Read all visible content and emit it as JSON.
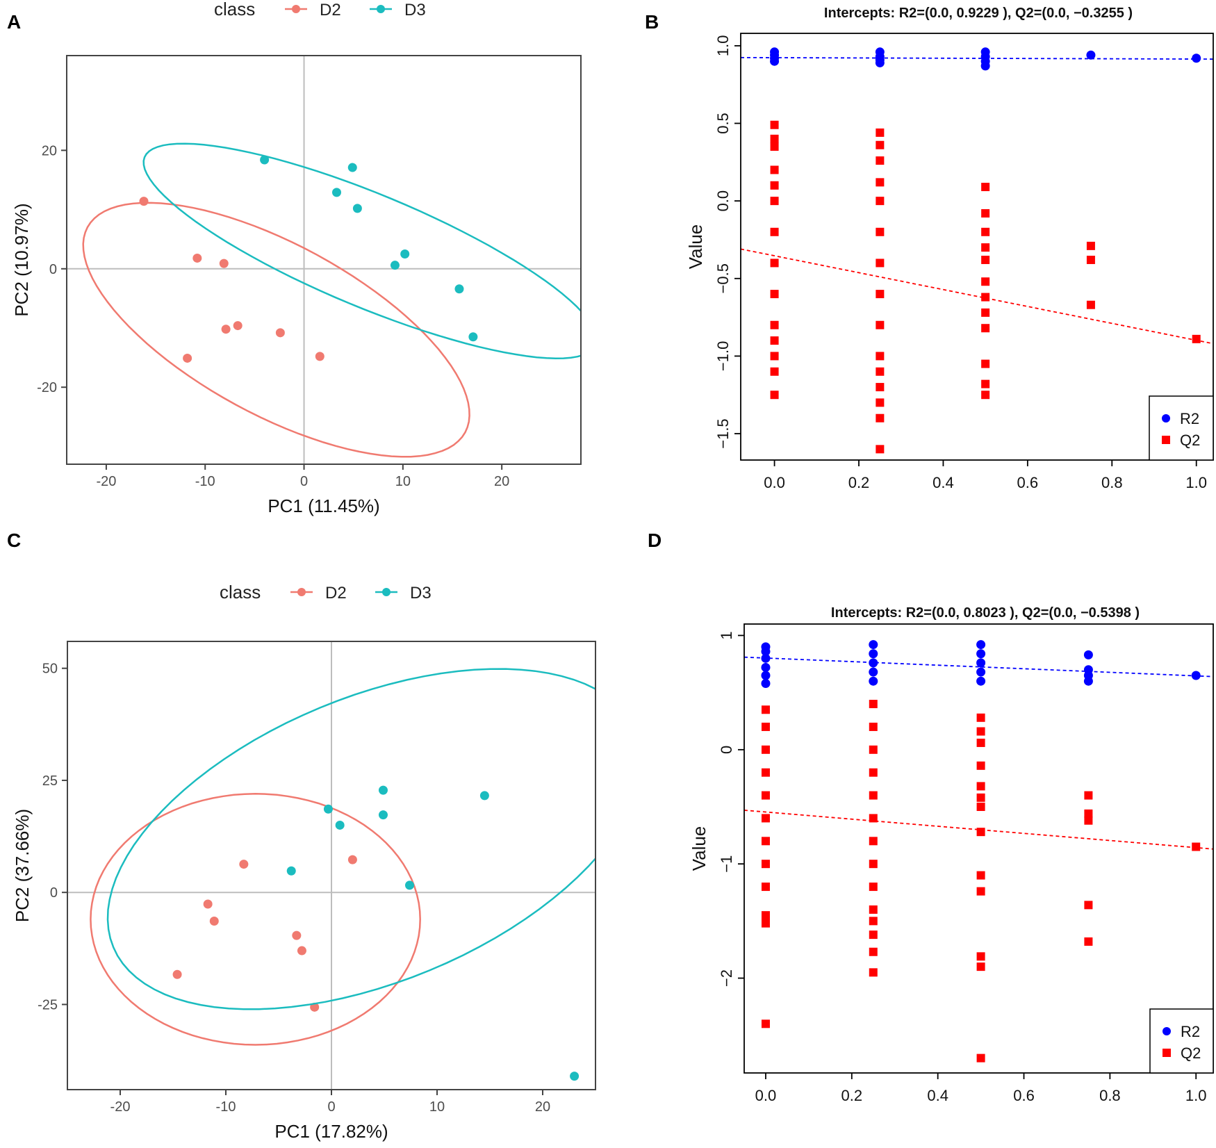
{
  "panel_letters": [
    "A",
    "B",
    "C",
    "D"
  ],
  "colors": {
    "d2": "#f07a70",
    "d3": "#1bbcbf",
    "r2": "#0000ff",
    "q2": "#ff0000",
    "grid": "#bdbdbd",
    "frame": "#444444"
  },
  "chart_data": [
    {
      "panel": "A",
      "type": "scatter",
      "legend_title": "class",
      "legend": [
        "D2",
        "D3"
      ],
      "xlabel": "PC1 (11.45%)",
      "ylabel": "PC2 (10.97%)",
      "xlim": [
        -24,
        28
      ],
      "ylim": [
        -33,
        36
      ],
      "xticks": [
        -20,
        -10,
        0,
        10,
        20
      ],
      "xtick_labels": [
        "-20",
        "-10",
        "0",
        "10",
        "20"
      ],
      "yticks": [
        -20,
        0,
        20
      ],
      "ytick_labels": [
        "-20",
        "0",
        "20"
      ],
      "series": [
        {
          "name": "D2",
          "points": [
            [
              -16.2,
              11.4
            ],
            [
              -10.8,
              1.8
            ],
            [
              -8.1,
              0.9
            ],
            [
              -7.9,
              -10.2
            ],
            [
              -6.7,
              -9.6
            ],
            [
              -2.4,
              -10.8
            ],
            [
              -11.8,
              -15.1
            ],
            [
              1.6,
              -14.8
            ]
          ],
          "ellipse": {
            "cx": -2.8,
            "cy": -10.3,
            "rx": 26.5,
            "ry": 11.8,
            "angle": -49
          }
        },
        {
          "name": "D3",
          "points": [
            [
              -4.0,
              18.4
            ],
            [
              4.9,
              17.1
            ],
            [
              3.3,
              12.9
            ],
            [
              5.4,
              10.2
            ],
            [
              10.2,
              2.5
            ],
            [
              9.2,
              0.6
            ],
            [
              15.7,
              -3.4
            ],
            [
              17.1,
              -11.5
            ]
          ],
          "ellipse": {
            "cx": 6.7,
            "cy": 3.0,
            "rx": 28.0,
            "ry": 8.4,
            "angle": -37
          }
        }
      ]
    },
    {
      "panel": "B",
      "type": "scatter",
      "title": "Intercepts: R2=(0.0, 0.9229 ), Q2=(0.0, −0.3255 )",
      "ylabel": "Value",
      "xlim": [
        -0.08,
        1.04
      ],
      "ylim": [
        -1.67,
        1.08
      ],
      "xticks": [
        0.0,
        0.2,
        0.4,
        0.6,
        0.8,
        1.0
      ],
      "xtick_labels": [
        "0.0",
        "0.2",
        "0.4",
        "0.6",
        "0.8",
        "1.0"
      ],
      "yticks": [
        1.0,
        0.5,
        0.0,
        -0.5,
        -1.0,
        -1.5
      ],
      "ytick_labels": [
        "1.0",
        "0.5",
        "0.0",
        "−0.5",
        "−1.0",
        "−1.5"
      ],
      "legend": [
        "R2",
        "Q2"
      ],
      "r2": [
        [
          0,
          0.9
        ],
        [
          0,
          0.92
        ],
        [
          0,
          0.94
        ],
        [
          0,
          0.96
        ],
        [
          0.25,
          0.89
        ],
        [
          0.25,
          0.91
        ],
        [
          0.25,
          0.93
        ],
        [
          0.25,
          0.96
        ],
        [
          0.5,
          0.87
        ],
        [
          0.5,
          0.9
        ],
        [
          0.5,
          0.93
        ],
        [
          0.5,
          0.96
        ],
        [
          0.75,
          0.94
        ],
        [
          1.0,
          0.92
        ]
      ],
      "q2": [
        [
          0,
          0.49
        ],
        [
          0,
          0.4
        ],
        [
          0,
          0.35
        ],
        [
          0,
          0.2
        ],
        [
          0,
          0.1
        ],
        [
          0,
          0.0
        ],
        [
          0,
          -0.2
        ],
        [
          0,
          -0.4
        ],
        [
          0,
          -0.6
        ],
        [
          0,
          -0.8
        ],
        [
          0,
          -0.9
        ],
        [
          0,
          -1.0
        ],
        [
          0,
          -1.1
        ],
        [
          0,
          -1.25
        ],
        [
          0.25,
          0.44
        ],
        [
          0.25,
          0.36
        ],
        [
          0.25,
          0.26
        ],
        [
          0.25,
          0.12
        ],
        [
          0.25,
          0.0
        ],
        [
          0.25,
          -0.2
        ],
        [
          0.25,
          -0.4
        ],
        [
          0.25,
          -0.6
        ],
        [
          0.25,
          -0.8
        ],
        [
          0.25,
          -1.0
        ],
        [
          0.25,
          -1.1
        ],
        [
          0.25,
          -1.2
        ],
        [
          0.25,
          -1.3
        ],
        [
          0.25,
          -1.4
        ],
        [
          0.25,
          -1.6
        ],
        [
          0.5,
          0.09
        ],
        [
          0.5,
          -0.08
        ],
        [
          0.5,
          -0.2
        ],
        [
          0.5,
          -0.3
        ],
        [
          0.5,
          -0.38
        ],
        [
          0.5,
          -0.52
        ],
        [
          0.5,
          -0.62
        ],
        [
          0.5,
          -0.72
        ],
        [
          0.5,
          -0.82
        ],
        [
          0.5,
          -1.05
        ],
        [
          0.5,
          -1.18
        ],
        [
          0.5,
          -1.25
        ],
        [
          0.75,
          -0.29
        ],
        [
          0.75,
          -0.38
        ],
        [
          0.75,
          -0.67
        ],
        [
          1.0,
          -0.89
        ]
      ],
      "r2_line": [
        [
          -0.08,
          0.924
        ],
        [
          1.04,
          0.914
        ]
      ],
      "q2_line": [
        [
          -0.08,
          -0.31
        ],
        [
          1.04,
          -0.92
        ]
      ]
    },
    {
      "panel": "C",
      "type": "scatter",
      "legend_title": "class",
      "legend": [
        "D2",
        "D3"
      ],
      "xlabel": "PC1 (17.82%)",
      "ylabel": "PC2 (37.66%)",
      "xlim": [
        -25,
        25
      ],
      "ylim": [
        -44,
        56
      ],
      "xticks": [
        -20,
        -10,
        0,
        10,
        20
      ],
      "xtick_labels": [
        "-20",
        "-10",
        "0",
        "10",
        "20"
      ],
      "yticks": [
        50,
        25,
        0,
        -25
      ],
      "ytick_labels": [
        "50",
        "25",
        "0",
        "-25"
      ],
      "series": [
        {
          "name": "D2",
          "points": [
            [
              -8.3,
              6.3
            ],
            [
              2.0,
              7.3
            ],
            [
              -11.7,
              -2.6
            ],
            [
              -11.1,
              -6.4
            ],
            [
              -3.3,
              -9.6
            ],
            [
              -2.8,
              -13.0
            ],
            [
              -14.6,
              -18.3
            ],
            [
              -1.6,
              -25.6
            ]
          ],
          "ellipse": {
            "cx": -7.2,
            "cy": -6.0,
            "rx": 15.6,
            "ry": 28.0,
            "angle": 0
          }
        },
        {
          "name": "D3",
          "points": [
            [
              4.9,
              22.8
            ],
            [
              14.5,
              21.6
            ],
            [
              -0.3,
              18.6
            ],
            [
              0.8,
              15.0
            ],
            [
              4.9,
              17.3
            ],
            [
              -3.8,
              4.8
            ],
            [
              7.4,
              1.6
            ],
            [
              23.0,
              -41.0
            ]
          ],
          "ellipse": {
            "cx": 4.1,
            "cy": 11.9,
            "rx": 21.0,
            "ry": 40.5,
            "angle": -24
          }
        }
      ]
    },
    {
      "panel": "D",
      "type": "scatter",
      "title": "Intercepts: R2=(0.0, 0.8023 ), Q2=(0.0, −0.5398 )",
      "ylabel": "Value",
      "xlim": [
        -0.05,
        1.04
      ],
      "ylim": [
        -2.83,
        1.1
      ],
      "xticks": [
        0.0,
        0.2,
        0.4,
        0.6,
        0.8,
        1.0
      ],
      "xtick_labels": [
        "0.0",
        "0.2",
        "0.4",
        "0.6",
        "0.8",
        "1.0"
      ],
      "yticks": [
        1,
        0,
        -1,
        -2
      ],
      "ytick_labels": [
        "1",
        "0",
        "−1",
        "−2"
      ],
      "legend": [
        "R2",
        "Q2"
      ],
      "r2": [
        [
          0,
          0.58
        ],
        [
          0,
          0.65
        ],
        [
          0,
          0.72
        ],
        [
          0,
          0.8
        ],
        [
          0,
          0.86
        ],
        [
          0,
          0.9
        ],
        [
          0.25,
          0.6
        ],
        [
          0.25,
          0.68
        ],
        [
          0.25,
          0.76
        ],
        [
          0.25,
          0.84
        ],
        [
          0.25,
          0.92
        ],
        [
          0.5,
          0.6
        ],
        [
          0.5,
          0.68
        ],
        [
          0.5,
          0.76
        ],
        [
          0.5,
          0.84
        ],
        [
          0.5,
          0.92
        ],
        [
          0.75,
          0.83
        ],
        [
          0.75,
          0.7
        ],
        [
          0.75,
          0.65
        ],
        [
          0.75,
          0.6
        ],
        [
          1.0,
          0.65
        ]
      ],
      "q2": [
        [
          0,
          0.35
        ],
        [
          0,
          0.2
        ],
        [
          0,
          0.0
        ],
        [
          0,
          -0.2
        ],
        [
          0,
          -0.4
        ],
        [
          0,
          -0.6
        ],
        [
          0,
          -0.8
        ],
        [
          0,
          -1.0
        ],
        [
          0,
          -1.2
        ],
        [
          0,
          -1.45
        ],
        [
          0,
          -1.52
        ],
        [
          0,
          -2.4
        ],
        [
          0.25,
          0.4
        ],
        [
          0.25,
          0.2
        ],
        [
          0.25,
          0.0
        ],
        [
          0.25,
          -0.2
        ],
        [
          0.25,
          -0.4
        ],
        [
          0.25,
          -0.6
        ],
        [
          0.25,
          -0.8
        ],
        [
          0.25,
          -1.0
        ],
        [
          0.25,
          -1.2
        ],
        [
          0.25,
          -1.4
        ],
        [
          0.25,
          -1.5
        ],
        [
          0.25,
          -1.62
        ],
        [
          0.25,
          -1.77
        ],
        [
          0.25,
          -1.95
        ],
        [
          0.5,
          0.28
        ],
        [
          0.5,
          0.16
        ],
        [
          0.5,
          0.06
        ],
        [
          0.5,
          -0.14
        ],
        [
          0.5,
          -0.32
        ],
        [
          0.5,
          -0.42
        ],
        [
          0.5,
          -0.5
        ],
        [
          0.5,
          -0.72
        ],
        [
          0.5,
          -1.1
        ],
        [
          0.5,
          -1.24
        ],
        [
          0.5,
          -1.81
        ],
        [
          0.5,
          -1.9
        ],
        [
          0.5,
          -2.7
        ],
        [
          0.75,
          -0.4
        ],
        [
          0.75,
          -0.56
        ],
        [
          0.75,
          -0.62
        ],
        [
          0.75,
          -1.36
        ],
        [
          0.75,
          -1.68
        ],
        [
          1.0,
          -0.85
        ]
      ],
      "r2_line": [
        [
          -0.05,
          0.81
        ],
        [
          1.04,
          0.64
        ]
      ],
      "q2_line": [
        [
          -0.05,
          -0.53
        ],
        [
          1.04,
          -0.87
        ]
      ]
    }
  ]
}
